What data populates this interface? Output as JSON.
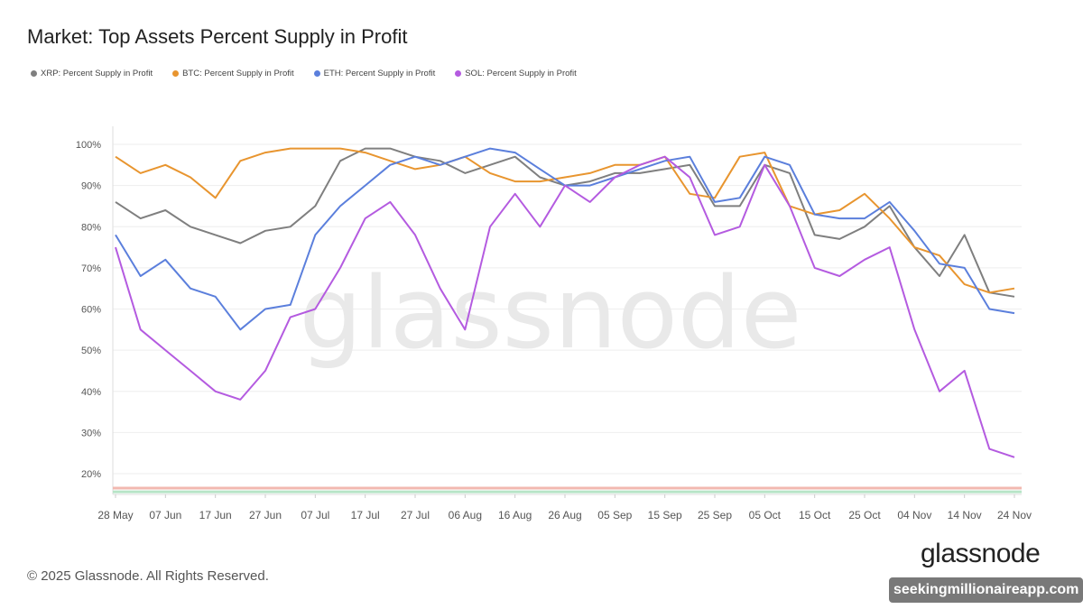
{
  "title": "Market: Top Assets Percent Supply in Profit",
  "footer": "© 2025 Glassnode. All Rights Reserved.",
  "logo_text": "glassnode",
  "watermark": "glassnode",
  "overlay_badge": "seekingmillionaireapp.com",
  "chart_data": {
    "type": "line",
    "title": "Market: Top Assets Percent Supply in Profit",
    "x_start": "2025-05-28",
    "x_step_days": 5,
    "x_tick_labels": [
      "28 May",
      "07 Jun",
      "17 Jun",
      "27 Jun",
      "07 Jul",
      "17 Jul",
      "27 Jul",
      "06 Aug",
      "16 Aug",
      "26 Aug",
      "05 Sep",
      "15 Sep",
      "25 Sep",
      "05 Oct",
      "15 Oct",
      "25 Oct",
      "04 Nov",
      "14 Nov",
      "24 Nov"
    ],
    "y_tick_labels": [
      "20%",
      "30%",
      "40%",
      "50%",
      "60%",
      "70%",
      "80%",
      "90%",
      "100%"
    ],
    "y_ticks": [
      20,
      30,
      40,
      50,
      60,
      70,
      80,
      90,
      100
    ],
    "ylim": [
      15,
      104
    ],
    "grid": true,
    "legend_position": "top-left",
    "series": [
      {
        "name": "XRP: Percent Supply in Profit",
        "color": "#7f7f7f",
        "values": [
          86,
          82,
          84,
          80,
          78,
          76,
          79,
          80,
          85,
          96,
          99,
          99,
          97,
          96,
          93,
          95,
          97,
          92,
          90,
          91,
          93,
          93,
          94,
          95,
          85,
          85,
          95,
          93,
          78,
          77,
          80,
          85,
          75,
          68,
          78,
          64,
          63
        ]
      },
      {
        "name": "BTC: Percent Supply in Profit",
        "color": "#e8952f",
        "values": [
          97,
          93,
          95,
          92,
          87,
          96,
          98,
          99,
          99,
          99,
          98,
          96,
          94,
          95,
          97,
          93,
          91,
          91,
          92,
          93,
          95,
          95,
          97,
          88,
          87,
          97,
          98,
          85,
          83,
          84,
          88,
          82,
          75,
          73,
          66,
          64,
          65
        ]
      },
      {
        "name": "ETH: Percent Supply in Profit",
        "color": "#5b7fdc",
        "values": [
          78,
          68,
          72,
          65,
          63,
          55,
          60,
          61,
          78,
          85,
          90,
          95,
          97,
          95,
          97,
          99,
          98,
          94,
          90,
          90,
          92,
          94,
          96,
          97,
          86,
          87,
          97,
          95,
          83,
          82,
          82,
          86,
          79,
          71,
          70,
          60,
          59
        ]
      },
      {
        "name": "SOL: Percent Supply in Profit",
        "color": "#b45be0",
        "values": [
          75,
          55,
          50,
          45,
          40,
          38,
          45,
          58,
          60,
          70,
          82,
          86,
          78,
          65,
          55,
          80,
          88,
          80,
          90,
          86,
          92,
          95,
          97,
          92,
          78,
          80,
          95,
          85,
          70,
          68,
          72,
          75,
          55,
          40,
          45,
          26,
          24
        ]
      }
    ],
    "reference_lines": [
      {
        "value": 16.5,
        "color": "#f2b8b0"
      },
      {
        "value": 15.6,
        "color": "#b7e4c7"
      }
    ]
  }
}
